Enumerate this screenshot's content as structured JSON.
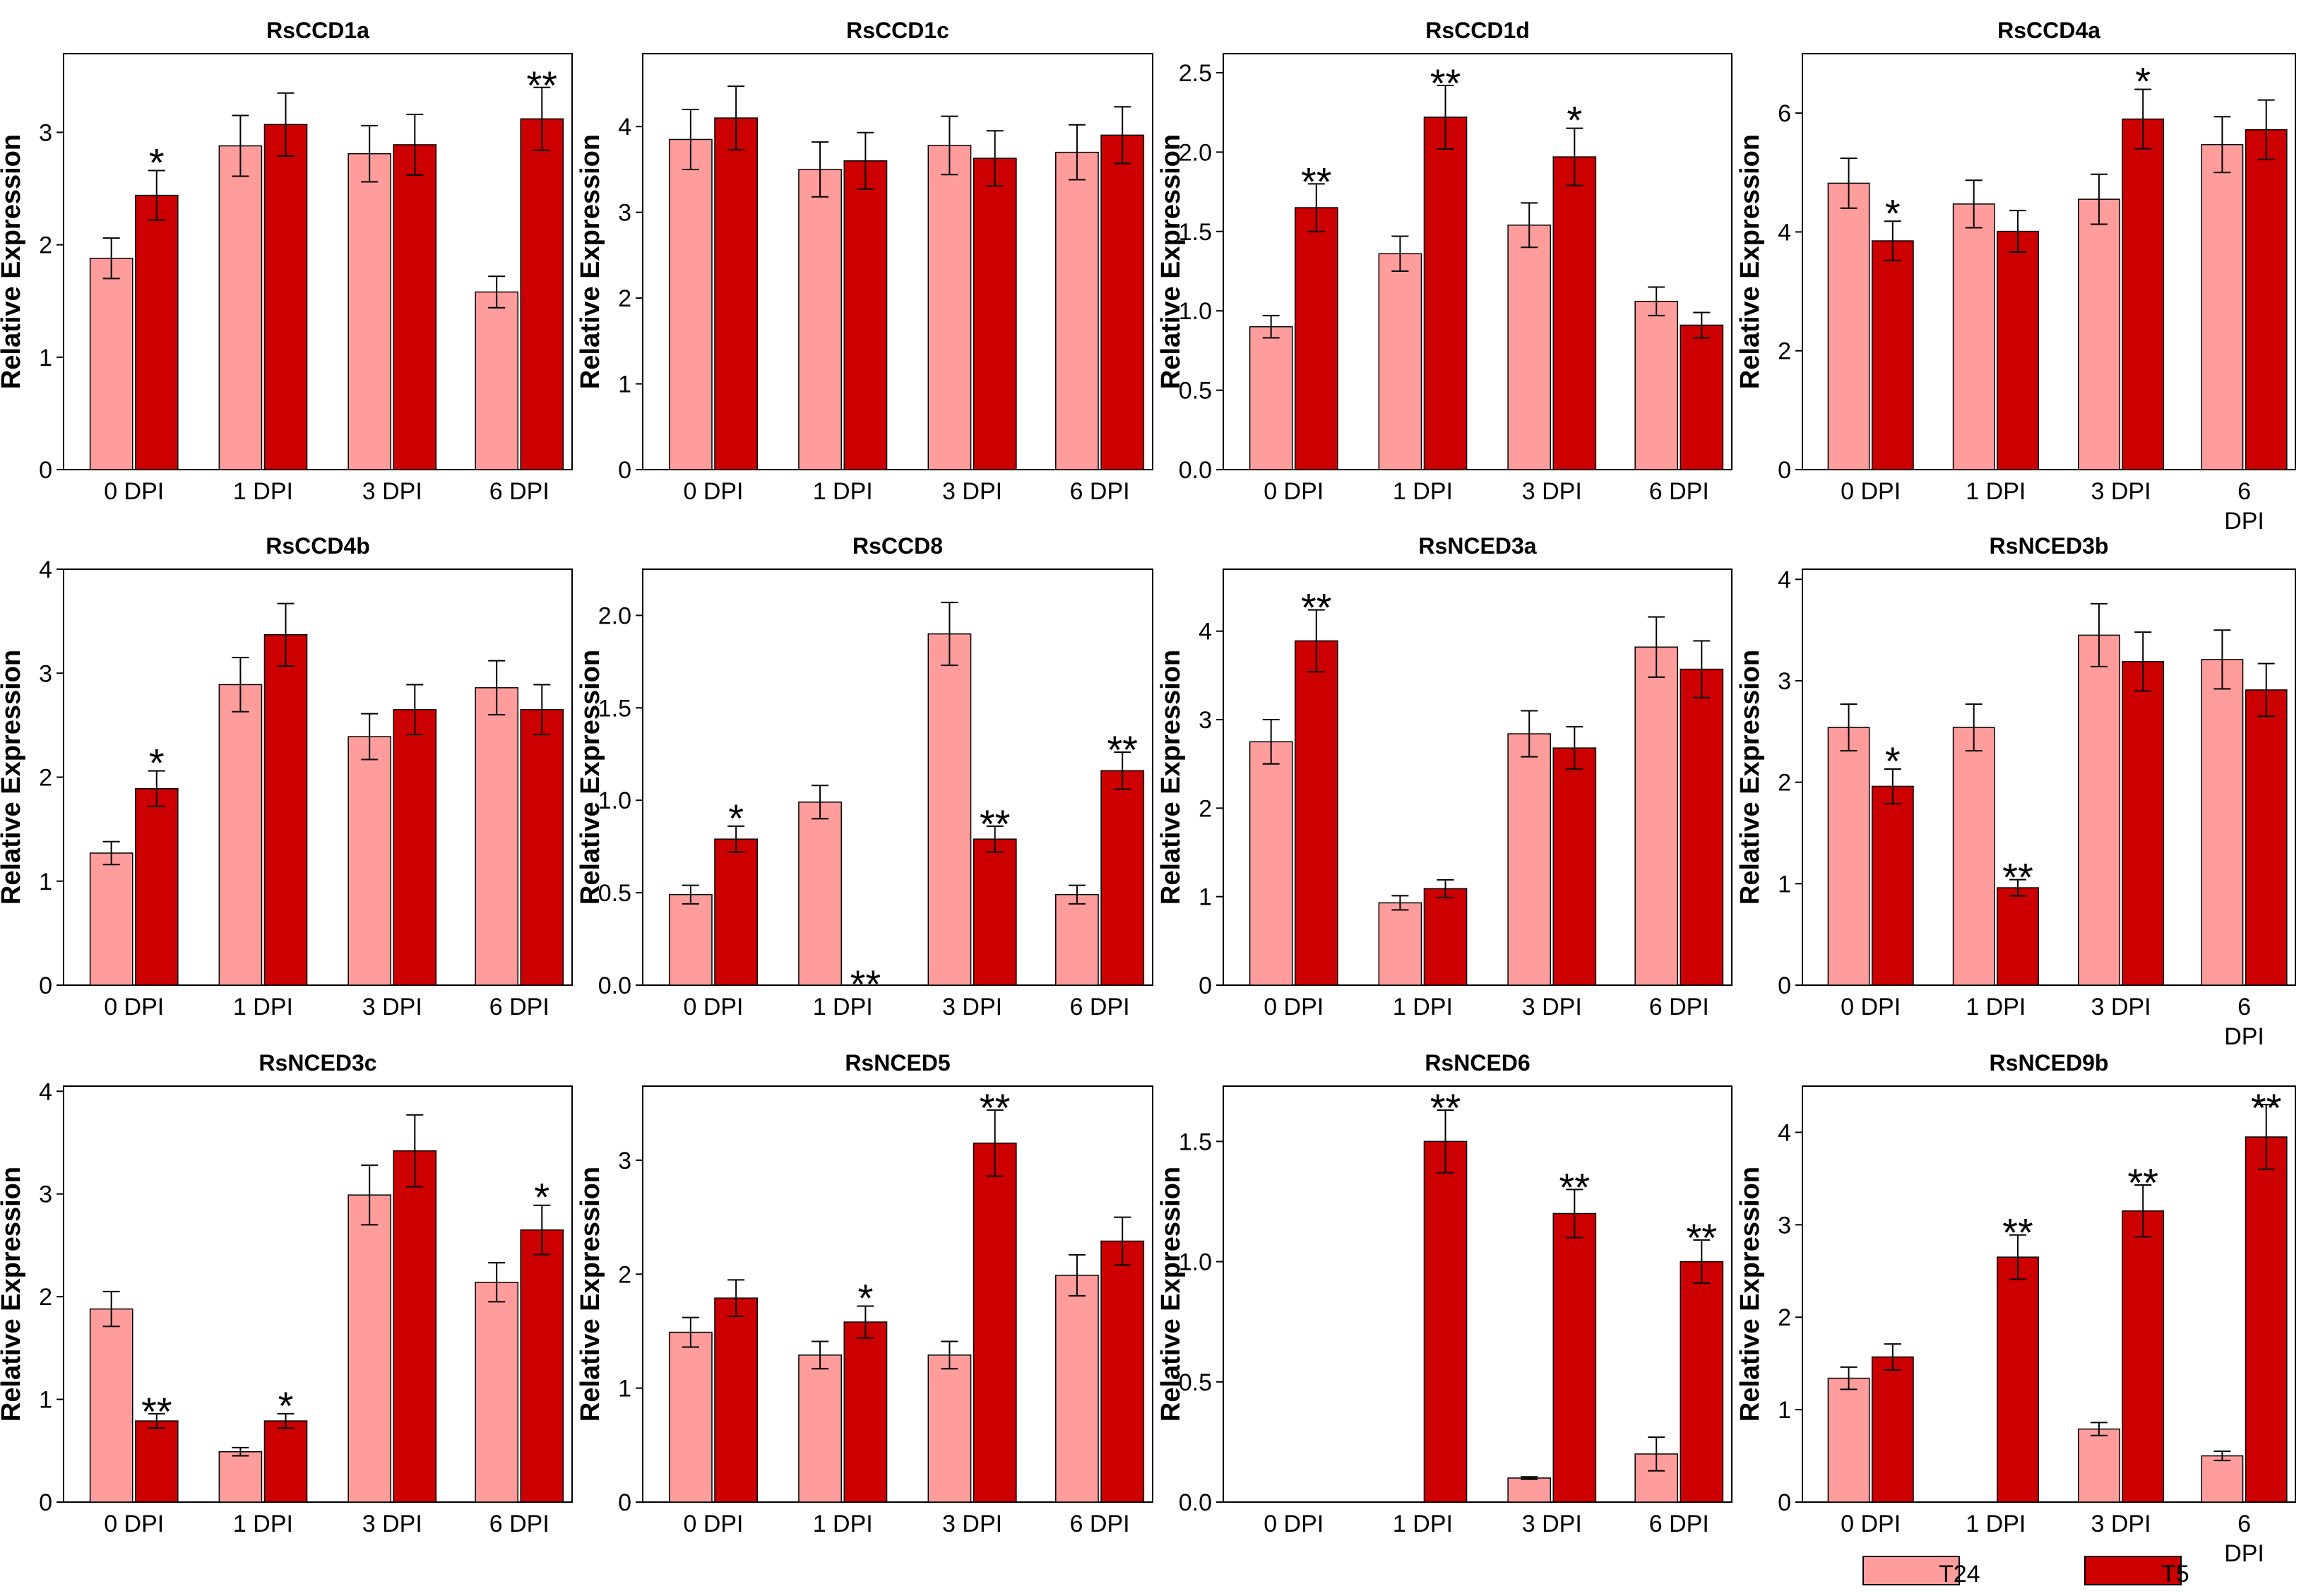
{
  "colors": {
    "T24": "#FF9C9C",
    "T5": "#CC0000",
    "axis": "#000000"
  },
  "legend": [
    {
      "name": "T24",
      "color": "#FF9C9C"
    },
    {
      "name": "T5",
      "color": "#CC0000"
    }
  ],
  "chart_data": [
    {
      "type": "bar",
      "title": "RsCCD1a",
      "ylabel": "Relative Expression",
      "categories": [
        "0 DPI",
        "1 DPI",
        "3 DPI",
        "6 DPI"
      ],
      "ylim": [
        0,
        3.7
      ],
      "yticks": [
        0,
        1,
        2,
        3
      ],
      "ytick_labels": [
        "0",
        "1",
        "2",
        "3"
      ],
      "series": [
        {
          "name": "T24",
          "values": [
            1.88,
            2.88,
            2.81,
            1.58
          ],
          "errors": [
            0.18,
            0.27,
            0.25,
            0.14
          ]
        },
        {
          "name": "T5",
          "values": [
            2.44,
            3.07,
            2.89,
            3.12
          ],
          "errors": [
            0.22,
            0.28,
            0.27,
            0.28
          ]
        }
      ],
      "annotations": [
        "*",
        "",
        "",
        "**"
      ]
    },
    {
      "type": "bar",
      "title": "RsCCD1c",
      "ylabel": "Relative Expression",
      "categories": [
        "0 DPI",
        "1 DPI",
        "3 DPI",
        "6 DPI"
      ],
      "ylim": [
        0,
        4.85
      ],
      "yticks": [
        0,
        1,
        2,
        3,
        4
      ],
      "ytick_labels": [
        "0",
        "1",
        "2",
        "3",
        "4"
      ],
      "series": [
        {
          "name": "T24",
          "values": [
            3.85,
            3.5,
            3.78,
            3.7
          ],
          "errors": [
            0.35,
            0.32,
            0.34,
            0.32
          ]
        },
        {
          "name": "T5",
          "values": [
            4.1,
            3.6,
            3.63,
            3.9
          ],
          "errors": [
            0.37,
            0.33,
            0.32,
            0.33
          ]
        }
      ],
      "annotations": [
        "",
        "",
        "",
        ""
      ]
    },
    {
      "type": "bar",
      "title": "RsCCD1d",
      "ylabel": "Relative Expression",
      "categories": [
        "0 DPI",
        "1 DPI",
        "3 DPI",
        "6 DPI"
      ],
      "ylim": [
        0,
        2.62
      ],
      "yticks": [
        0,
        0.5,
        1.0,
        1.5,
        2.0,
        2.5
      ],
      "ytick_labels": [
        "0.0",
        "0.5",
        "1.0",
        "1.5",
        "2.0",
        "2.5"
      ],
      "series": [
        {
          "name": "T24",
          "values": [
            0.9,
            1.36,
            1.54,
            1.06
          ],
          "errors": [
            0.07,
            0.11,
            0.14,
            0.09
          ]
        },
        {
          "name": "T5",
          "values": [
            1.65,
            2.22,
            1.97,
            0.91
          ],
          "errors": [
            0.15,
            0.2,
            0.18,
            0.08
          ]
        }
      ],
      "annotations": [
        "**",
        "**",
        "*",
        ""
      ]
    },
    {
      "type": "bar",
      "title": "RsCCD4a",
      "ylabel": "Relative Expression",
      "categories": [
        "0 DPI",
        "1 DPI",
        "3 DPI",
        "6\nDPI"
      ],
      "ylim": [
        0,
        7.0
      ],
      "yticks": [
        0,
        2,
        4,
        6
      ],
      "ytick_labels": [
        "0",
        "2",
        "4",
        "6"
      ],
      "series": [
        {
          "name": "T24",
          "values": [
            4.82,
            4.47,
            4.55,
            5.47
          ],
          "errors": [
            0.42,
            0.4,
            0.42,
            0.47
          ]
        },
        {
          "name": "T5",
          "values": [
            3.85,
            4.01,
            5.9,
            5.72
          ],
          "errors": [
            0.33,
            0.35,
            0.5,
            0.5
          ]
        }
      ],
      "annotations": [
        "*",
        "",
        "*",
        ""
      ]
    },
    {
      "type": "bar",
      "title": "RsCCD4b",
      "ylabel": "Relative Expression",
      "categories": [
        "0 DPI",
        "1 DPI",
        "3 DPI",
        "6 DPI"
      ],
      "ylim": [
        0,
        4.0
      ],
      "yticks": [
        0,
        1,
        2,
        3,
        4
      ],
      "ytick_labels": [
        "0",
        "1",
        "2",
        "3",
        "4"
      ],
      "series": [
        {
          "name": "T24",
          "values": [
            1.27,
            2.89,
            2.39,
            2.86
          ],
          "errors": [
            0.11,
            0.26,
            0.22,
            0.26
          ]
        },
        {
          "name": "T5",
          "values": [
            1.89,
            3.37,
            2.65,
            2.65
          ],
          "errors": [
            0.17,
            0.3,
            0.24,
            0.24
          ]
        }
      ],
      "annotations": [
        "*",
        "",
        "",
        ""
      ]
    },
    {
      "type": "bar",
      "title": "RsCCD8",
      "ylabel": "Relative Expression",
      "categories": [
        "0 DPI",
        "1 DPI",
        "3 DPI",
        "6 DPI"
      ],
      "ylim": [
        0,
        2.25
      ],
      "yticks": [
        0,
        0.5,
        1.0,
        1.5,
        2.0
      ],
      "ytick_labels": [
        "0.0",
        "0.5",
        "1.0",
        "1.5",
        "2.0"
      ],
      "series": [
        {
          "name": "T24",
          "values": [
            0.49,
            0.99,
            1.9,
            0.49
          ],
          "errors": [
            0.05,
            0.09,
            0.17,
            0.05
          ]
        },
        {
          "name": "T5",
          "values": [
            0.79,
            0.0,
            0.79,
            1.16
          ],
          "errors": [
            0.07,
            0,
            0.07,
            0.1
          ]
        }
      ],
      "annotations": [
        "*",
        "**",
        "**",
        "**"
      ]
    },
    {
      "type": "bar",
      "title": "RsNCED3a",
      "ylabel": "Relative Expression",
      "categories": [
        "0 DPI",
        "1 DPI",
        "3 DPI",
        "6 DPI"
      ],
      "ylim": [
        0,
        4.7
      ],
      "yticks": [
        0,
        1,
        2,
        3,
        4
      ],
      "ytick_labels": [
        "0",
        "1",
        "2",
        "3",
        "4"
      ],
      "series": [
        {
          "name": "T24",
          "values": [
            2.75,
            0.93,
            2.84,
            3.82
          ],
          "errors": [
            0.25,
            0.08,
            0.26,
            0.34
          ]
        },
        {
          "name": "T5",
          "values": [
            3.89,
            1.09,
            2.68,
            3.57
          ],
          "errors": [
            0.35,
            0.1,
            0.24,
            0.32
          ]
        }
      ],
      "annotations": [
        "**",
        "",
        "",
        ""
      ]
    },
    {
      "type": "bar",
      "title": "RsNCED3b",
      "ylabel": "Relative Expression",
      "categories": [
        "0 DPI",
        "1 DPI",
        "3 DPI",
        "6\nDPI"
      ],
      "ylim": [
        0,
        4.1
      ],
      "yticks": [
        0,
        1,
        2,
        3,
        4
      ],
      "ytick_labels": [
        "0",
        "1",
        "2",
        "3",
        "4"
      ],
      "series": [
        {
          "name": "T24",
          "values": [
            2.54,
            2.54,
            3.45,
            3.21
          ],
          "errors": [
            0.23,
            0.23,
            0.31,
            0.29
          ]
        },
        {
          "name": "T5",
          "values": [
            1.96,
            0.96,
            3.19,
            2.91
          ],
          "errors": [
            0.17,
            0.08,
            0.29,
            0.26
          ]
        }
      ],
      "annotations": [
        "*",
        "**",
        "",
        ""
      ]
    },
    {
      "type": "bar",
      "title": "RsNCED3c",
      "ylabel": "Relative Expression",
      "categories": [
        "0 DPI",
        "1 DPI",
        "3 DPI",
        "6 DPI"
      ],
      "ylim": [
        0,
        4.05
      ],
      "yticks": [
        0,
        1,
        2,
        3,
        4
      ],
      "ytick_labels": [
        "0",
        "1",
        "2",
        "3",
        "4"
      ],
      "series": [
        {
          "name": "T24",
          "values": [
            1.88,
            0.49,
            2.99,
            2.14
          ],
          "errors": [
            0.17,
            0.04,
            0.29,
            0.19
          ]
        },
        {
          "name": "T5",
          "values": [
            0.79,
            0.79,
            3.42,
            2.65
          ],
          "errors": [
            0.07,
            0.07,
            0.35,
            0.24
          ]
        }
      ],
      "annotations": [
        "**",
        "*",
        "",
        "*"
      ]
    },
    {
      "type": "bar",
      "title": "RsNCED5",
      "ylabel": "Relative Expression",
      "categories": [
        "0 DPI",
        "1 DPI",
        "3 DPI",
        "6 DPI"
      ],
      "ylim": [
        0,
        3.65
      ],
      "yticks": [
        0,
        1,
        2,
        3
      ],
      "ytick_labels": [
        "0",
        "1",
        "2",
        "3"
      ],
      "series": [
        {
          "name": "T24",
          "values": [
            1.49,
            1.29,
            1.29,
            1.99
          ],
          "errors": [
            0.13,
            0.12,
            0.12,
            0.18
          ]
        },
        {
          "name": "T5",
          "values": [
            1.79,
            1.58,
            3.15,
            2.29
          ],
          "errors": [
            0.16,
            0.14,
            0.29,
            0.21
          ]
        }
      ],
      "annotations": [
        "",
        "*",
        "**",
        ""
      ]
    },
    {
      "type": "bar",
      "title": "RsNCED6",
      "ylabel": "Relative Expression",
      "categories": [
        "0 DPI",
        "1 DPI",
        "3 DPI",
        "6 DPI"
      ],
      "ylim": [
        0,
        1.73
      ],
      "yticks": [
        0,
        0.5,
        1.0,
        1.5
      ],
      "ytick_labels": [
        "0.0",
        "0.5",
        "1.0",
        "1.5"
      ],
      "series": [
        {
          "name": "T24",
          "values": [
            0.0,
            0.0,
            0.1,
            0.2
          ],
          "errors": [
            0,
            0,
            0.005,
            0.07
          ]
        },
        {
          "name": "T5",
          "values": [
            0.0,
            1.5,
            1.2,
            1.0
          ],
          "errors": [
            0,
            0.13,
            0.1,
            0.09
          ]
        }
      ],
      "annotations": [
        "",
        "**",
        "**",
        "**"
      ]
    },
    {
      "type": "bar",
      "title": "RsNCED9b",
      "ylabel": "Relative Expression",
      "categories": [
        "0 DPI",
        "1 DPI",
        "3 DPI",
        "6\nDPI"
      ],
      "ylim": [
        0,
        4.5
      ],
      "yticks": [
        0,
        1,
        2,
        3,
        4
      ],
      "ytick_labels": [
        "0",
        "1",
        "2",
        "3",
        "4"
      ],
      "series": [
        {
          "name": "T24",
          "values": [
            1.34,
            0.0,
            0.79,
            0.5
          ],
          "errors": [
            0.12,
            0,
            0.07,
            0.05
          ]
        },
        {
          "name": "T5",
          "values": [
            1.57,
            2.65,
            3.15,
            3.95
          ],
          "errors": [
            0.14,
            0.24,
            0.28,
            0.35
          ]
        }
      ],
      "annotations": [
        "",
        "**",
        "**",
        "**"
      ]
    }
  ]
}
